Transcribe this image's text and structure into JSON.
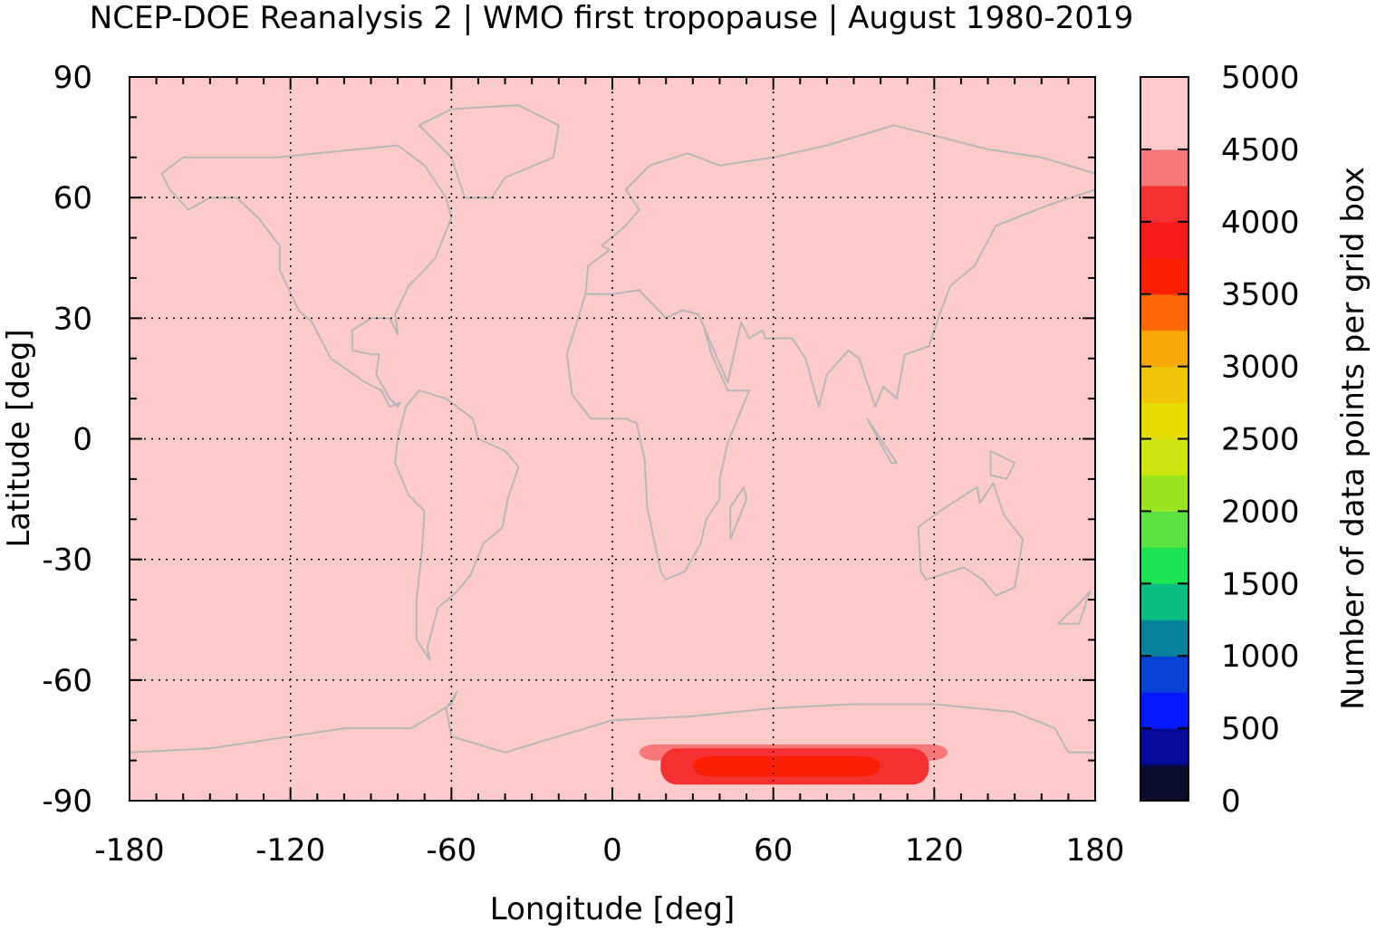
{
  "title": "NCEP-DOE Reanalysis 2 | WMO first tropopause | August 1980-2019",
  "chart_data": {
    "type": "heatmap",
    "title": "NCEP-DOE Reanalysis 2 | WMO first tropopause | August 1980-2019",
    "xlabel": "Longitude [deg]",
    "ylabel": "Latitude [deg]",
    "colorbar_label": "Number of data points per grid box",
    "xlim": [
      -180,
      180
    ],
    "ylim": [
      -90,
      90
    ],
    "x_ticks": [
      -180,
      -120,
      -60,
      0,
      60,
      120,
      180
    ],
    "y_ticks": [
      90,
      60,
      30,
      0,
      -30,
      -60,
      -90
    ],
    "x_tick_labels": [
      "-180",
      "-120",
      "-60",
      "0",
      "60",
      "120",
      "180"
    ],
    "y_tick_labels": [
      "90",
      "60",
      "30",
      "0",
      "-30",
      "-60",
      "-90"
    ],
    "grid": true,
    "background_value": 5000,
    "colorbar": {
      "range": [
        0,
        5000
      ],
      "tick_values": [
        0,
        500,
        1000,
        1500,
        2000,
        2500,
        3000,
        3500,
        4000,
        4500,
        5000
      ],
      "tick_labels": [
        "0",
        "500",
        "1000",
        "1500",
        "2000",
        "2500",
        "3000",
        "3500",
        "4000",
        "4500",
        "5000"
      ],
      "colors": [
        "#0c0c2e",
        "#060a9a",
        "#0519fd",
        "#0543d4",
        "#07829c",
        "#07bf82",
        "#1ae354",
        "#5ae342",
        "#98e520",
        "#cfe512",
        "#e8dc07",
        "#f1c507",
        "#f6a907",
        "#fd6605",
        "#fa1f05",
        "#f91b1b",
        "#f43030",
        "#f67878",
        "#fdcaca"
      ]
    },
    "region_low_counts": [
      {
        "lon_range": [
          10,
          125
        ],
        "lat_range": [
          -80,
          -76
        ],
        "value": 4750,
        "color": "#f67878"
      },
      {
        "lon_range": [
          18,
          118
        ],
        "lat_range": [
          -86,
          -77
        ],
        "value": 4250,
        "color": "#f43030"
      },
      {
        "lon_range": [
          30,
          100
        ],
        "lat_range": [
          -84,
          -79
        ],
        "value": 4000,
        "color": "#fa1f05"
      }
    ],
    "coastline_color": "#b7b7b7"
  }
}
